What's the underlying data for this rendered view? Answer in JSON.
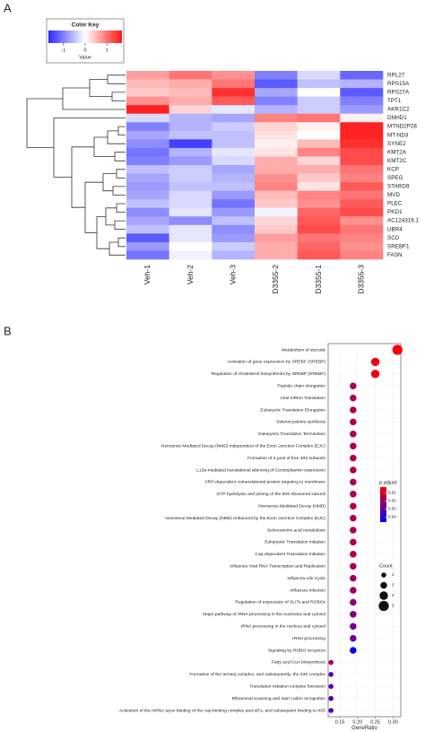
{
  "chart_data": [
    {
      "type": "heatmap",
      "panel_label": "A",
      "rows": [
        "RPL27",
        "RPS15A",
        "RPS27A",
        "TPT1",
        "AKR1C2",
        "DNHD1",
        "MTND2P28",
        "MT-ND3",
        "SYNE2",
        "KMT2A",
        "KMT2C",
        "KCP",
        "SPEG",
        "STARD9",
        "MVD",
        "PLEC",
        "PKD1",
        "AC124319.1",
        "UBR4",
        "SCD",
        "SREBF1",
        "FASN"
      ],
      "columns": [
        "Veh-1",
        "Veh-2",
        "Veh-3",
        "D3355-2",
        "D3355-1",
        "D3355-3"
      ],
      "values": [
        [
          0.7,
          1.0,
          0.8,
          -1.0,
          -0.3,
          -1.2
        ],
        [
          0.5,
          0.6,
          1.0,
          -1.3,
          -0.5,
          -0.6
        ],
        [
          0.4,
          0.5,
          1.5,
          -0.7,
          0.0,
          -1.3
        ],
        [
          0.8,
          0.6,
          1.2,
          -1.0,
          -0.4,
          -1.0
        ],
        [
          1.6,
          0.3,
          -0.2,
          -0.6,
          -0.4,
          -0.8
        ],
        [
          -0.3,
          -0.6,
          -0.7,
          0.9,
          1.0,
          0.1
        ],
        [
          -1.0,
          -0.6,
          -0.4,
          0.3,
          0.1,
          1.6
        ],
        [
          -0.7,
          -0.5,
          -0.5,
          0.2,
          0.0,
          1.6
        ],
        [
          -0.9,
          -1.5,
          -0.5,
          0.1,
          0.5,
          1.5
        ],
        [
          -1.1,
          -0.6,
          -0.2,
          0.2,
          0.9,
          1.3
        ],
        [
          -1.0,
          -0.8,
          -0.3,
          0.6,
          0.3,
          1.3
        ],
        [
          -0.5,
          -0.4,
          -0.7,
          0.6,
          0.6,
          1.0
        ],
        [
          -0.7,
          -0.4,
          -0.6,
          0.8,
          0.4,
          0.9
        ],
        [
          -0.8,
          -0.5,
          -0.5,
          0.9,
          0.2,
          1.2
        ],
        [
          -0.7,
          -0.3,
          -0.8,
          0.5,
          0.9,
          1.0
        ],
        [
          -0.5,
          -0.3,
          -1.1,
          0.4,
          0.8,
          1.2
        ],
        [
          -0.9,
          -0.2,
          -0.8,
          -0.1,
          1.1,
          1.3
        ],
        [
          -0.7,
          -0.9,
          -0.5,
          0.3,
          1.2,
          0.8
        ],
        [
          -0.5,
          -0.2,
          -0.9,
          0.4,
          1.3,
          1.0
        ],
        [
          -1.3,
          -0.2,
          -0.8,
          0.7,
          1.0,
          0.9
        ],
        [
          -0.8,
          0.0,
          -0.4,
          0.6,
          1.1,
          0.8
        ],
        [
          -1.1,
          -0.1,
          -0.6,
          0.6,
          1.2,
          0.9
        ]
      ],
      "colorbar": {
        "title": "Color Key",
        "label": "Value",
        "lim": [
          -1.7,
          1.7
        ],
        "ticks": [
          -1,
          0,
          1
        ],
        "colors": [
          "#2828ff",
          "#ffffff",
          "#ff1414"
        ]
      }
    },
    {
      "type": "dotplot",
      "panel_label": "B",
      "categories": [
        "Metabolism of steroids",
        "Activation of gene expression by SREBF (SREBP)",
        "Regulation of cholesterol biosynthesis by SREBP (SREBF)",
        "Peptide chain elongation",
        "Viral mRNA Translation",
        "Eukaryotic Translation Elongation",
        "Selenocysteine synthesis",
        "Eukaryotic Translation Termination",
        "Nonsense Mediated Decay (NMD) independent of the Exon Junction Complex (EJC)",
        "Formation of a pool of free 40S subunits",
        "L13a-mediated translational silencing of Ceruloplasmin expression",
        "SRP-dependent cotranslational protein targeting to membrane",
        "GTP hydrolysis and joining of the 60S ribosomal subunit",
        "Nonsense-Mediated Decay (NMD)",
        "Nonsense Mediated Decay (NMD) enhanced by the Exon Junction Complex (EJC)",
        "Selenoamino acid metabolism",
        "Eukaryotic Translation Initiation",
        "Cap-dependent Translation Initiation",
        "Influenza Viral RNA Transcription and Replication",
        "Influenza Life Cycle",
        "Influenza Infection",
        "Regulation of expression of SLITs and ROBOs",
        "Major pathway of rRNA processing in the nucleolus and cytosol",
        "rRNA processing in the nucleus and cytosol",
        "rRNA processing",
        "Signaling by ROBO receptors",
        "Fatty acyl-CoA biosynthesis",
        "Formation of the ternary complex, and subsequently, the 43S complex",
        "Translation initiation complex formation",
        "Ribosomal scanning and start codon recognition",
        "Activation of the mRNA upon binding of the cap-binding complex and eIFs, and subsequent binding to 43S"
      ],
      "values": [
        0.3125,
        0.25,
        0.25,
        0.1875,
        0.1875,
        0.1875,
        0.1875,
        0.1875,
        0.1875,
        0.1875,
        0.1875,
        0.1875,
        0.1875,
        0.1875,
        0.1875,
        0.1875,
        0.1875,
        0.1875,
        0.1875,
        0.1875,
        0.1875,
        0.1875,
        0.1875,
        0.1875,
        0.1875,
        0.1875,
        0.125,
        0.125,
        0.125,
        0.125,
        0.125
      ],
      "sizes": [
        5,
        4,
        4,
        3,
        3,
        3,
        3,
        3,
        3,
        3,
        3,
        3,
        3,
        3,
        3,
        3,
        3,
        3,
        3,
        3,
        3,
        3,
        3,
        3,
        3,
        3,
        2,
        2,
        2,
        2,
        2
      ],
      "padj": [
        0.003,
        0.005,
        0.005,
        0.017,
        0.017,
        0.017,
        0.017,
        0.017,
        0.017,
        0.017,
        0.017,
        0.017,
        0.017,
        0.017,
        0.017,
        0.017,
        0.017,
        0.017,
        0.018,
        0.019,
        0.02,
        0.022,
        0.024,
        0.026,
        0.028,
        0.045,
        0.018,
        0.03,
        0.03,
        0.032,
        0.032
      ],
      "xlabel": "GeneRatio",
      "xlim": [
        0.117,
        0.322
      ],
      "xticks": [
        0.15,
        {
          "value": 0.2,
          "label": "0.20"
        },
        0.25,
        {
          "value": 0.3,
          "label": "0.30"
        }
      ],
      "grid": true,
      "color_legend": {
        "title": "p.adjust",
        "lim": [
          0.003,
          0.046
        ],
        "ticks": [
          0.01,
          0.02,
          0.03,
          0.04
        ],
        "colors": [
          "#ff0000",
          "#0000ff"
        ]
      },
      "size_legend": {
        "title": "Count",
        "values": [
          2,
          3,
          4,
          5
        ]
      }
    }
  ]
}
